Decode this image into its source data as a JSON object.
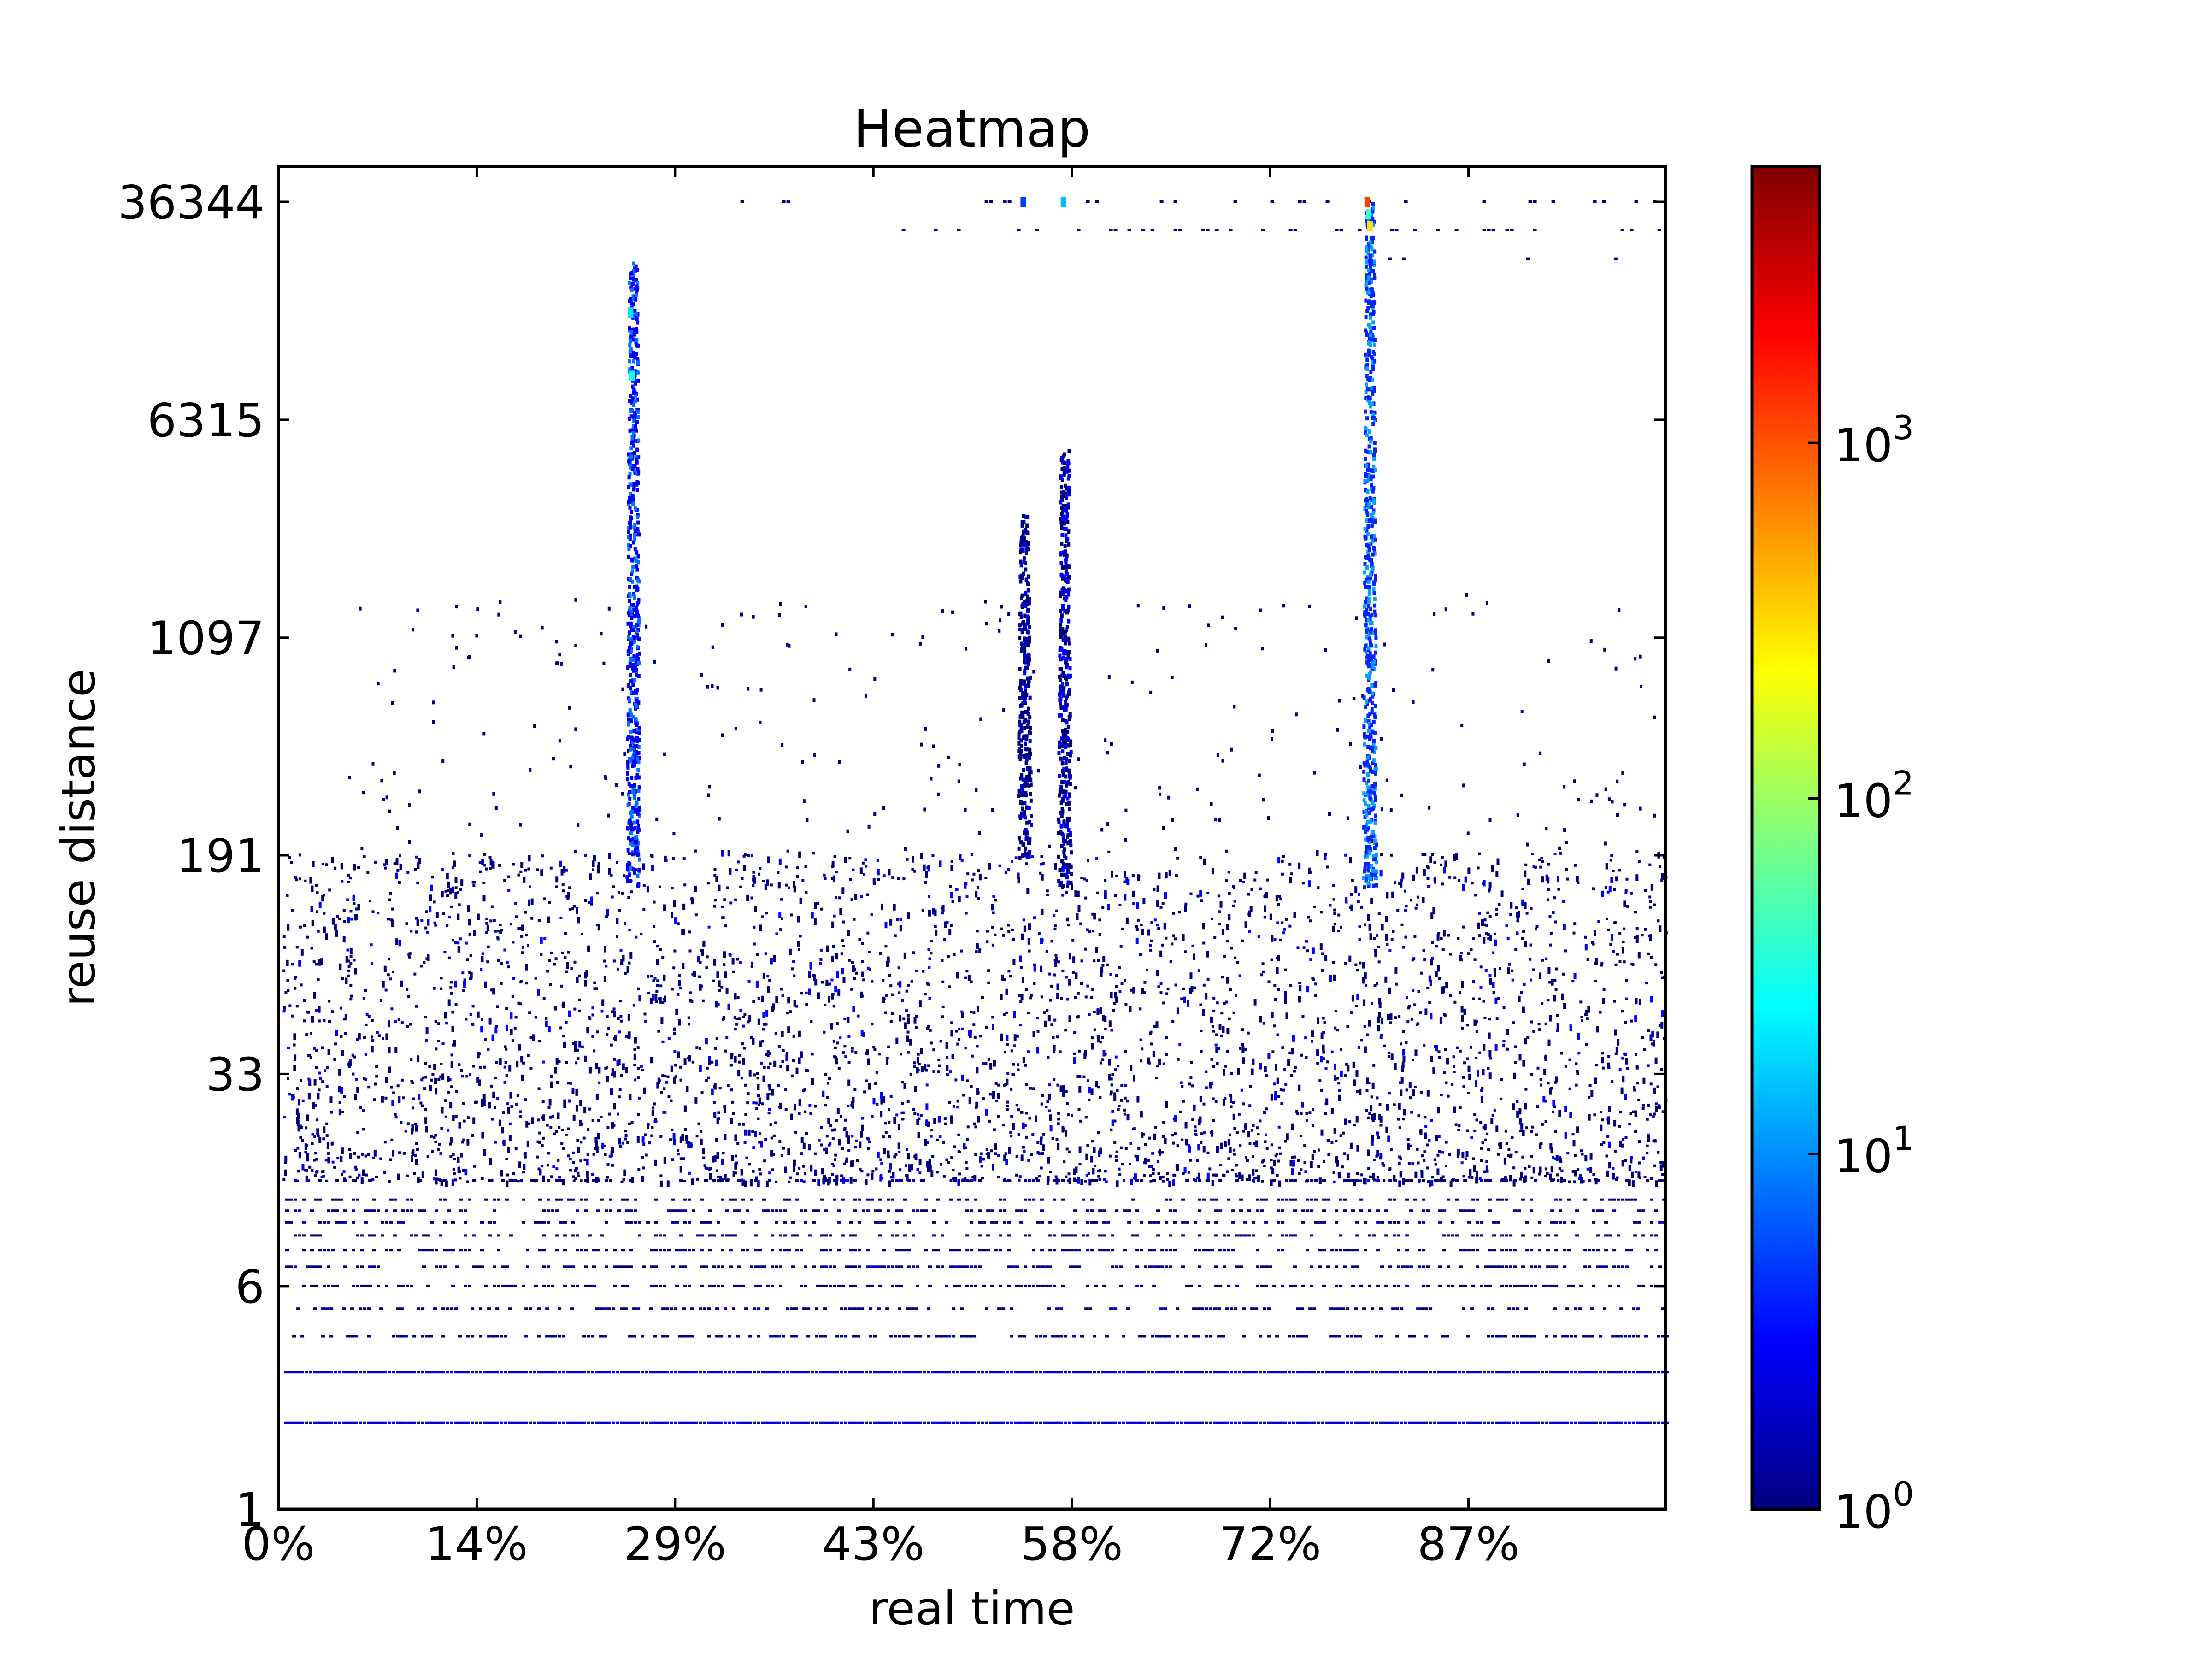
{
  "chart_data": {
    "type": "heatmap",
    "title": "Heatmap",
    "xlabel": "real time",
    "ylabel": "reuse distance",
    "x_ticks": [
      "0%",
      "14%",
      "29%",
      "43%",
      "58%",
      "72%",
      "87%"
    ],
    "x_tick_values": [
      0,
      14.3,
      28.6,
      42.9,
      57.2,
      71.5,
      85.8
    ],
    "xlim": [
      0,
      100
    ],
    "y_scale": "log",
    "y_ticks": [
      "1",
      "6",
      "33",
      "191",
      "1097",
      "6315",
      "36344"
    ],
    "y_tick_values": [
      1,
      6,
      33,
      191,
      1097,
      6315,
      36344
    ],
    "ylim": [
      1,
      60000
    ],
    "colorbar": {
      "scale": "log",
      "range": [
        1,
        6000
      ],
      "colormap": "jet",
      "tick_bases": [
        "10",
        "10",
        "10",
        "10"
      ],
      "tick_exponents": [
        "0",
        "1",
        "2",
        "3"
      ],
      "tick_values": [
        1,
        10,
        100,
        1000
      ],
      "colors": [
        "#00007f",
        "#0000ff",
        "#007fff",
        "#00ffff",
        "#7fff7f",
        "#ffff00",
        "#ff7f00",
        "#ff0000",
        "#7f0000"
      ]
    },
    "bands": [
      {
        "y": 2,
        "x_from": 0.4,
        "x_to": 100,
        "density": 1.0,
        "intensity": 2
      },
      {
        "y": 3,
        "x_from": 0.4,
        "x_to": 100,
        "density": 1.0,
        "intensity": 2
      },
      {
        "y": 4,
        "x_from": 1,
        "x_to": 100,
        "density": 0.55,
        "intensity": 1
      },
      {
        "y": 5,
        "x_from": 1,
        "x_to": 100,
        "density": 0.45,
        "intensity": 1
      },
      {
        "y": 6,
        "x_from": 0.5,
        "x_to": 100,
        "density": 0.5,
        "intensity": 1
      },
      {
        "y": 7,
        "x_from": 0.5,
        "x_to": 100,
        "density": 0.5,
        "intensity": 1
      },
      {
        "y": 8,
        "x_from": 0.5,
        "x_to": 100,
        "density": 0.5,
        "intensity": 1
      },
      {
        "y": 9,
        "x_from": 0.5,
        "x_to": 100,
        "density": 0.45,
        "intensity": 1
      },
      {
        "y": 10,
        "x_from": 0.5,
        "x_to": 100,
        "density": 0.45,
        "intensity": 1
      },
      {
        "y": 11,
        "x_from": 0.5,
        "x_to": 100,
        "density": 0.4,
        "intensity": 1
      },
      {
        "y": 12,
        "x_from": 0.5,
        "x_to": 100,
        "density": 0.4,
        "intensity": 1
      },
      {
        "y": 14,
        "x_from": 0.5,
        "x_to": 100,
        "density": 0.35,
        "intensity": 1
      }
    ],
    "vertical_bursts": [
      {
        "x": 25.5,
        "y_from": 150,
        "y_to": 23000,
        "intensity": 8
      },
      {
        "x": 78.6,
        "y_from": 150,
        "y_to": 36344,
        "intensity": 12
      },
      {
        "x": 53.7,
        "y_from": 190,
        "y_to": 3000,
        "intensity": 2
      },
      {
        "x": 56.6,
        "y_from": 150,
        "y_to": 5000,
        "intensity": 3
      }
    ],
    "hot_cells": [
      {
        "x": 25.5,
        "y": 9000,
        "value": 30
      },
      {
        "x": 25.4,
        "y": 15000,
        "value": 20
      },
      {
        "x": 78.5,
        "y": 36344,
        "value": 1200
      },
      {
        "x": 78.7,
        "y": 30000,
        "value": 300
      },
      {
        "x": 78.6,
        "y": 33000,
        "value": 40
      },
      {
        "x": 56.6,
        "y": 36344,
        "value": 15
      },
      {
        "x": 53.7,
        "y": 36344,
        "value": 5
      }
    ],
    "top_rows": [
      {
        "y": 36344,
        "x_from": 26,
        "x_to": 100,
        "density": 0.12
      },
      {
        "y": 29000,
        "x_from": 26,
        "x_to": 100,
        "density": 0.15
      },
      {
        "y": 23000,
        "x_from": 79,
        "x_to": 100,
        "density": 0.06
      }
    ],
    "scatter_region": {
      "x_from": 0.3,
      "x_to": 100,
      "y_from": 14,
      "y_to": 200,
      "count": 4200
    },
    "sparse_region": {
      "x_from": 5,
      "x_to": 100,
      "y_from": 200,
      "y_to": 1600,
      "count": 260
    }
  }
}
